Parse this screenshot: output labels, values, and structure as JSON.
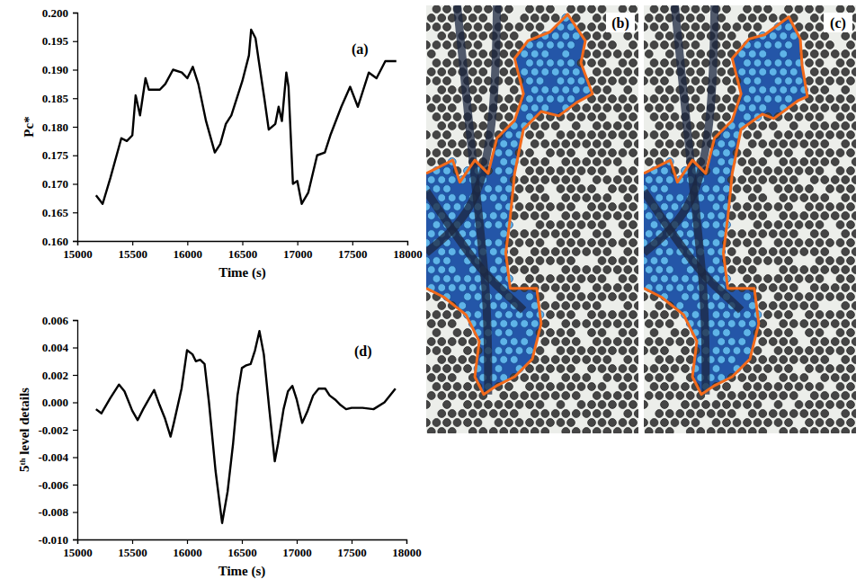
{
  "chart_data": [
    {
      "type": "line",
      "title": "(a)",
      "xlabel": "Time (s)",
      "ylabel": "Pc*",
      "x": [
        15170,
        15230,
        15300,
        15400,
        15450,
        15500,
        15530,
        15570,
        15620,
        15650,
        15750,
        15800,
        15870,
        15950,
        16000,
        16050,
        16100,
        16170,
        16250,
        16300,
        16350,
        16400,
        16500,
        16560,
        16580,
        16620,
        16650,
        16700,
        16740,
        16800,
        16830,
        16860,
        16900,
        16920,
        16960,
        17000,
        17040,
        17100,
        17180,
        17250,
        17300,
        17400,
        17480,
        17550,
        17650,
        17720,
        17800,
        17900
      ],
      "series": [
        {
          "color": "#000000",
          "values": [
            0.168,
            0.1665,
            0.171,
            0.178,
            0.1775,
            0.1785,
            0.1855,
            0.182,
            0.1885,
            0.1865,
            0.1865,
            0.1875,
            0.19,
            0.1895,
            0.1885,
            0.1905,
            0.1875,
            0.181,
            0.1755,
            0.177,
            0.1805,
            0.182,
            0.188,
            0.1925,
            0.197,
            0.1955,
            0.1915,
            0.185,
            0.1795,
            0.1805,
            0.1835,
            0.181,
            0.1895,
            0.187,
            0.17,
            0.1705,
            0.1665,
            0.1685,
            0.175,
            0.1755,
            0.1785,
            0.1835,
            0.187,
            0.1835,
            0.1895,
            0.1885,
            0.1915,
            0.1915
          ]
        }
      ],
      "xlim": [
        15000,
        18000
      ],
      "xticks": [
        15000,
        15500,
        16000,
        16500,
        17000,
        17500,
        18000
      ],
      "ylim": [
        0.16,
        0.2
      ],
      "yticks": [
        {
          "value": 0.16,
          "label": "0.160"
        },
        0.165,
        {
          "value": 0.17,
          "label": "0.170"
        },
        0.175,
        {
          "value": 0.18,
          "label": "0.180"
        },
        0.185,
        {
          "value": 0.19,
          "label": "0.190"
        },
        0.195,
        {
          "value": 0.2,
          "label": "0.200"
        }
      ],
      "grid": false
    },
    {
      "type": "line",
      "title": "(d)",
      "xlabel": "Time (s)",
      "ylabel": "5ᵗʰ level details",
      "x": [
        15170,
        15220,
        15300,
        15380,
        15430,
        15500,
        15550,
        15600,
        15650,
        15700,
        15750,
        15800,
        15850,
        15880,
        15950,
        16000,
        16050,
        16080,
        16120,
        16160,
        16200,
        16260,
        16320,
        16370,
        16420,
        16460,
        16500,
        16540,
        16580,
        16620,
        16660,
        16700,
        16750,
        16800,
        16830,
        16880,
        16920,
        16960,
        17000,
        17050,
        17100,
        17150,
        17200,
        17260,
        17300,
        17350,
        17400,
        17450,
        17500,
        17600,
        17700,
        17800,
        17900
      ],
      "series": [
        {
          "color": "#000000",
          "values": [
            -0.0005,
            -0.0008,
            0.0003,
            0.0013,
            0.0008,
            -0.0006,
            -0.0013,
            -0.0005,
            0.0002,
            0.0009,
            -0.0002,
            -0.0012,
            -0.0025,
            -0.0015,
            0.001,
            0.0038,
            0.0035,
            0.003,
            0.0031,
            0.0028,
            0.0,
            -0.005,
            -0.0088,
            -0.0065,
            -0.003,
            0.0005,
            0.0025,
            0.0027,
            0.0028,
            0.0038,
            0.0052,
            0.0035,
            -0.0005,
            -0.0043,
            -0.003,
            -0.0005,
            0.0008,
            0.0012,
            0.0002,
            -0.0015,
            -0.0006,
            0.0005,
            0.001,
            0.001,
            0.0005,
            0.0002,
            -0.0002,
            -0.0005,
            -0.0004,
            -0.0004,
            -0.0005,
            0.0,
            0.001
          ]
        }
      ],
      "xlim": [
        15000,
        18000
      ],
      "xticks": [
        15000,
        15500,
        16000,
        16500,
        17000,
        17500,
        18000
      ],
      "ylim": [
        -0.01,
        0.006
      ],
      "yticks": [
        {
          "value": -0.01,
          "label": "-0.010"
        },
        -0.008,
        -0.006,
        -0.004,
        -0.002,
        {
          "value": 0,
          "label": "0.000"
        },
        0.002,
        0.004,
        0.006
      ],
      "grid": false
    }
  ],
  "images": [
    {
      "label": "(b)"
    },
    {
      "label": "(c)"
    }
  ]
}
